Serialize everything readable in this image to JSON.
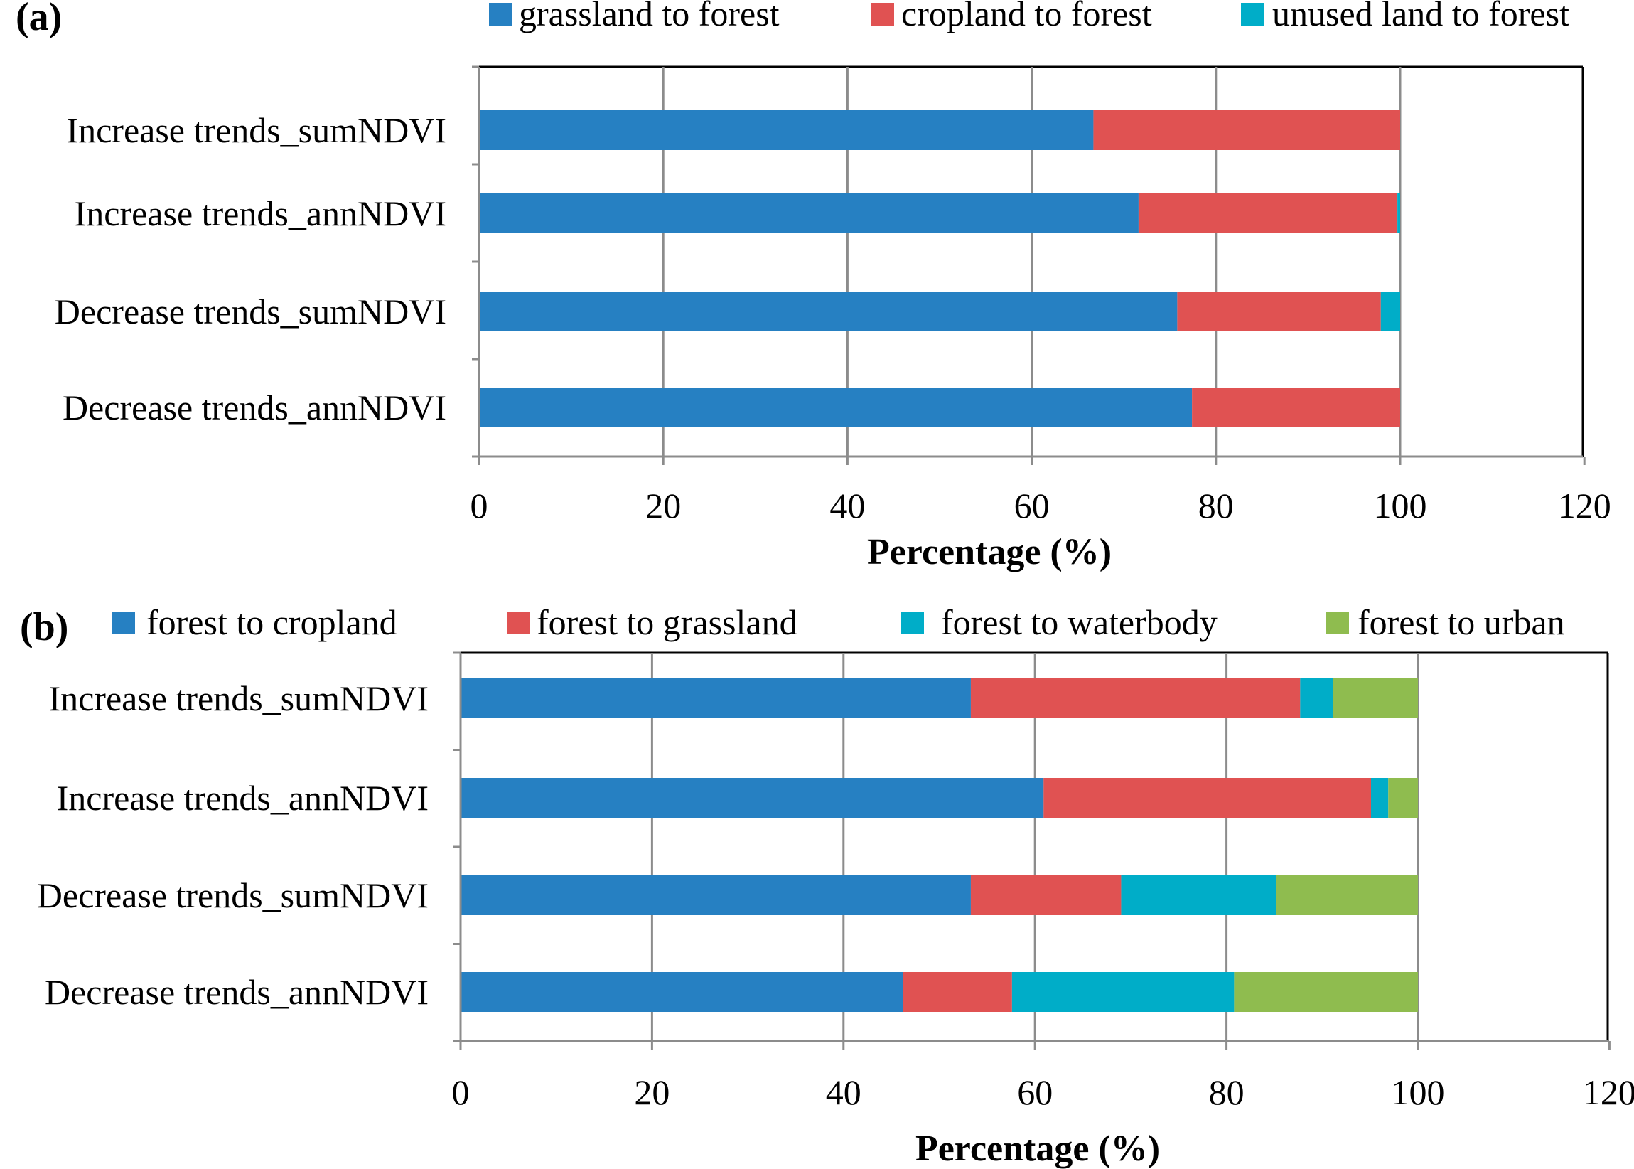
{
  "colors": {
    "blue": "#2680C2",
    "red": "#E05252",
    "cyan": "#00ADC8",
    "green": "#8FBC4F",
    "grid": "#8C8C8C",
    "axis": "#000000"
  },
  "chart_data": [
    {
      "panel_label": "(a)",
      "type": "bar",
      "orientation": "horizontal",
      "stacked": true,
      "categories": [
        "Increase trends_sumNDVI",
        "Increase trends_annNDVI",
        "Decrease trends_sumNDVI",
        "Decrease trends_annNDVI"
      ],
      "series": [
        {
          "name": "grassland to forest",
          "color": "#2680C2",
          "values": [
            66.7,
            71.6,
            75.8,
            77.4
          ]
        },
        {
          "name": "cropland to forest",
          "color": "#E05252",
          "values": [
            33.3,
            28.1,
            22.1,
            22.6
          ]
        },
        {
          "name": "unused land to forest",
          "color": "#00ADC8",
          "values": [
            0,
            0.3,
            2.1,
            0
          ]
        }
      ],
      "xlabel": "Percentage (%)",
      "ylabel": "",
      "xlim": [
        0,
        120
      ],
      "xticks": [
        0,
        20,
        40,
        60,
        80,
        100,
        120
      ],
      "xtick_labels": [
        "0",
        "20",
        "40",
        "60",
        "80",
        "100",
        "120"
      ],
      "grid": true,
      "legend_position": "top"
    },
    {
      "panel_label": "(b)",
      "type": "bar",
      "orientation": "horizontal",
      "stacked": true,
      "categories": [
        "Increase trends_sumNDVI",
        "Increase trends_annNDVI",
        "Decrease trends_sumNDVI",
        "Decrease trends_annNDVI"
      ],
      "series": [
        {
          "name": "forest to cropland",
          "color": "#2680C2",
          "values": [
            53.3,
            60.9,
            53.3,
            46.2
          ]
        },
        {
          "name": "forest to grassland",
          "color": "#E05252",
          "values": [
            34.4,
            34.2,
            15.7,
            11.4
          ]
        },
        {
          "name": "forest to waterbody",
          "color": "#00ADC8",
          "values": [
            3.4,
            1.8,
            16.2,
            23.2
          ]
        },
        {
          "name": "forest to urban",
          "color": "#8FBC4F",
          "values": [
            8.9,
            3.1,
            14.8,
            19.2
          ]
        }
      ],
      "xlabel": "Percentage (%)",
      "ylabel": "",
      "xlim": [
        0,
        120
      ],
      "xticks": [
        0,
        20,
        40,
        60,
        80,
        100,
        120
      ],
      "xtick_labels": [
        "0",
        "20",
        "40",
        "60",
        "80",
        "100",
        "120"
      ],
      "grid": true,
      "legend_position": "top"
    }
  ]
}
